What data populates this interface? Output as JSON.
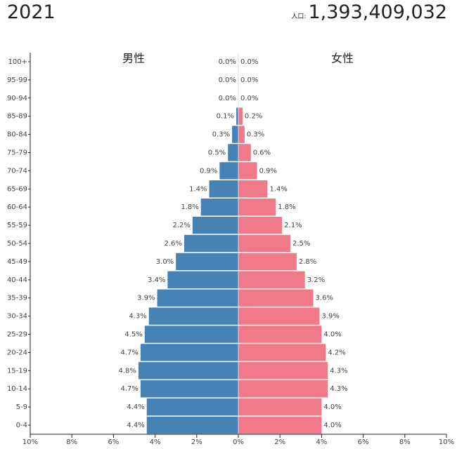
{
  "year": "2021",
  "population_label": "人口:",
  "population_value": "1,393,409,032",
  "male_label": "男性",
  "female_label": "女性",
  "colors": {
    "male": "#4682b4",
    "female": "#f07a88",
    "axis": "#222222"
  },
  "chart_data": {
    "type": "bar",
    "orientation": "horizontal-population-pyramid",
    "categories": [
      "0-4",
      "5-9",
      "10-14",
      "15-19",
      "20-24",
      "25-29",
      "30-34",
      "35-39",
      "40-44",
      "45-49",
      "50-54",
      "55-59",
      "60-64",
      "65-69",
      "70-74",
      "75-79",
      "80-84",
      "85-89",
      "90-94",
      "95-99",
      "100+"
    ],
    "series": [
      {
        "name": "男性",
        "values": [
          4.4,
          4.4,
          4.7,
          4.8,
          4.7,
          4.5,
          4.3,
          3.9,
          3.4,
          3.0,
          2.6,
          2.2,
          1.8,
          1.4,
          0.9,
          0.5,
          0.3,
          0.1,
          0.0,
          0.0,
          0.0
        ],
        "labels": [
          "4.4%",
          "4.4%",
          "4.7%",
          "4.8%",
          "4.7%",
          "4.5%",
          "4.3%",
          "3.9%",
          "3.4%",
          "3.0%",
          "2.6%",
          "2.2%",
          "1.8%",
          "1.4%",
          "0.9%",
          "0.5%",
          "0.3%",
          "0.1%",
          "0.0%",
          "0.0%",
          "0.0%"
        ]
      },
      {
        "name": "女性",
        "values": [
          4.0,
          4.0,
          4.3,
          4.3,
          4.2,
          4.0,
          3.9,
          3.6,
          3.2,
          2.8,
          2.5,
          2.1,
          1.8,
          1.4,
          0.9,
          0.6,
          0.3,
          0.2,
          0.0,
          0.0,
          0.0
        ],
        "labels": [
          "4.0%",
          "4.0%",
          "4.3%",
          "4.3%",
          "4.2%",
          "4.0%",
          "3.9%",
          "3.6%",
          "3.2%",
          "2.8%",
          "2.5%",
          "2.1%",
          "1.8%",
          "1.4%",
          "0.9%",
          "0.6%",
          "0.3%",
          "0.2%",
          "0.0%",
          "0.0%",
          "0.0%"
        ]
      }
    ],
    "xlim": [
      -10,
      10
    ],
    "x_tick_labels": [
      "10%",
      "8%",
      "6%",
      "4%",
      "2%",
      "0%",
      "2%",
      "4%",
      "6%",
      "8%",
      "10%"
    ],
    "x_tick_values": [
      -10,
      -8,
      -6,
      -4,
      -2,
      0,
      2,
      4,
      6,
      8,
      10
    ]
  }
}
